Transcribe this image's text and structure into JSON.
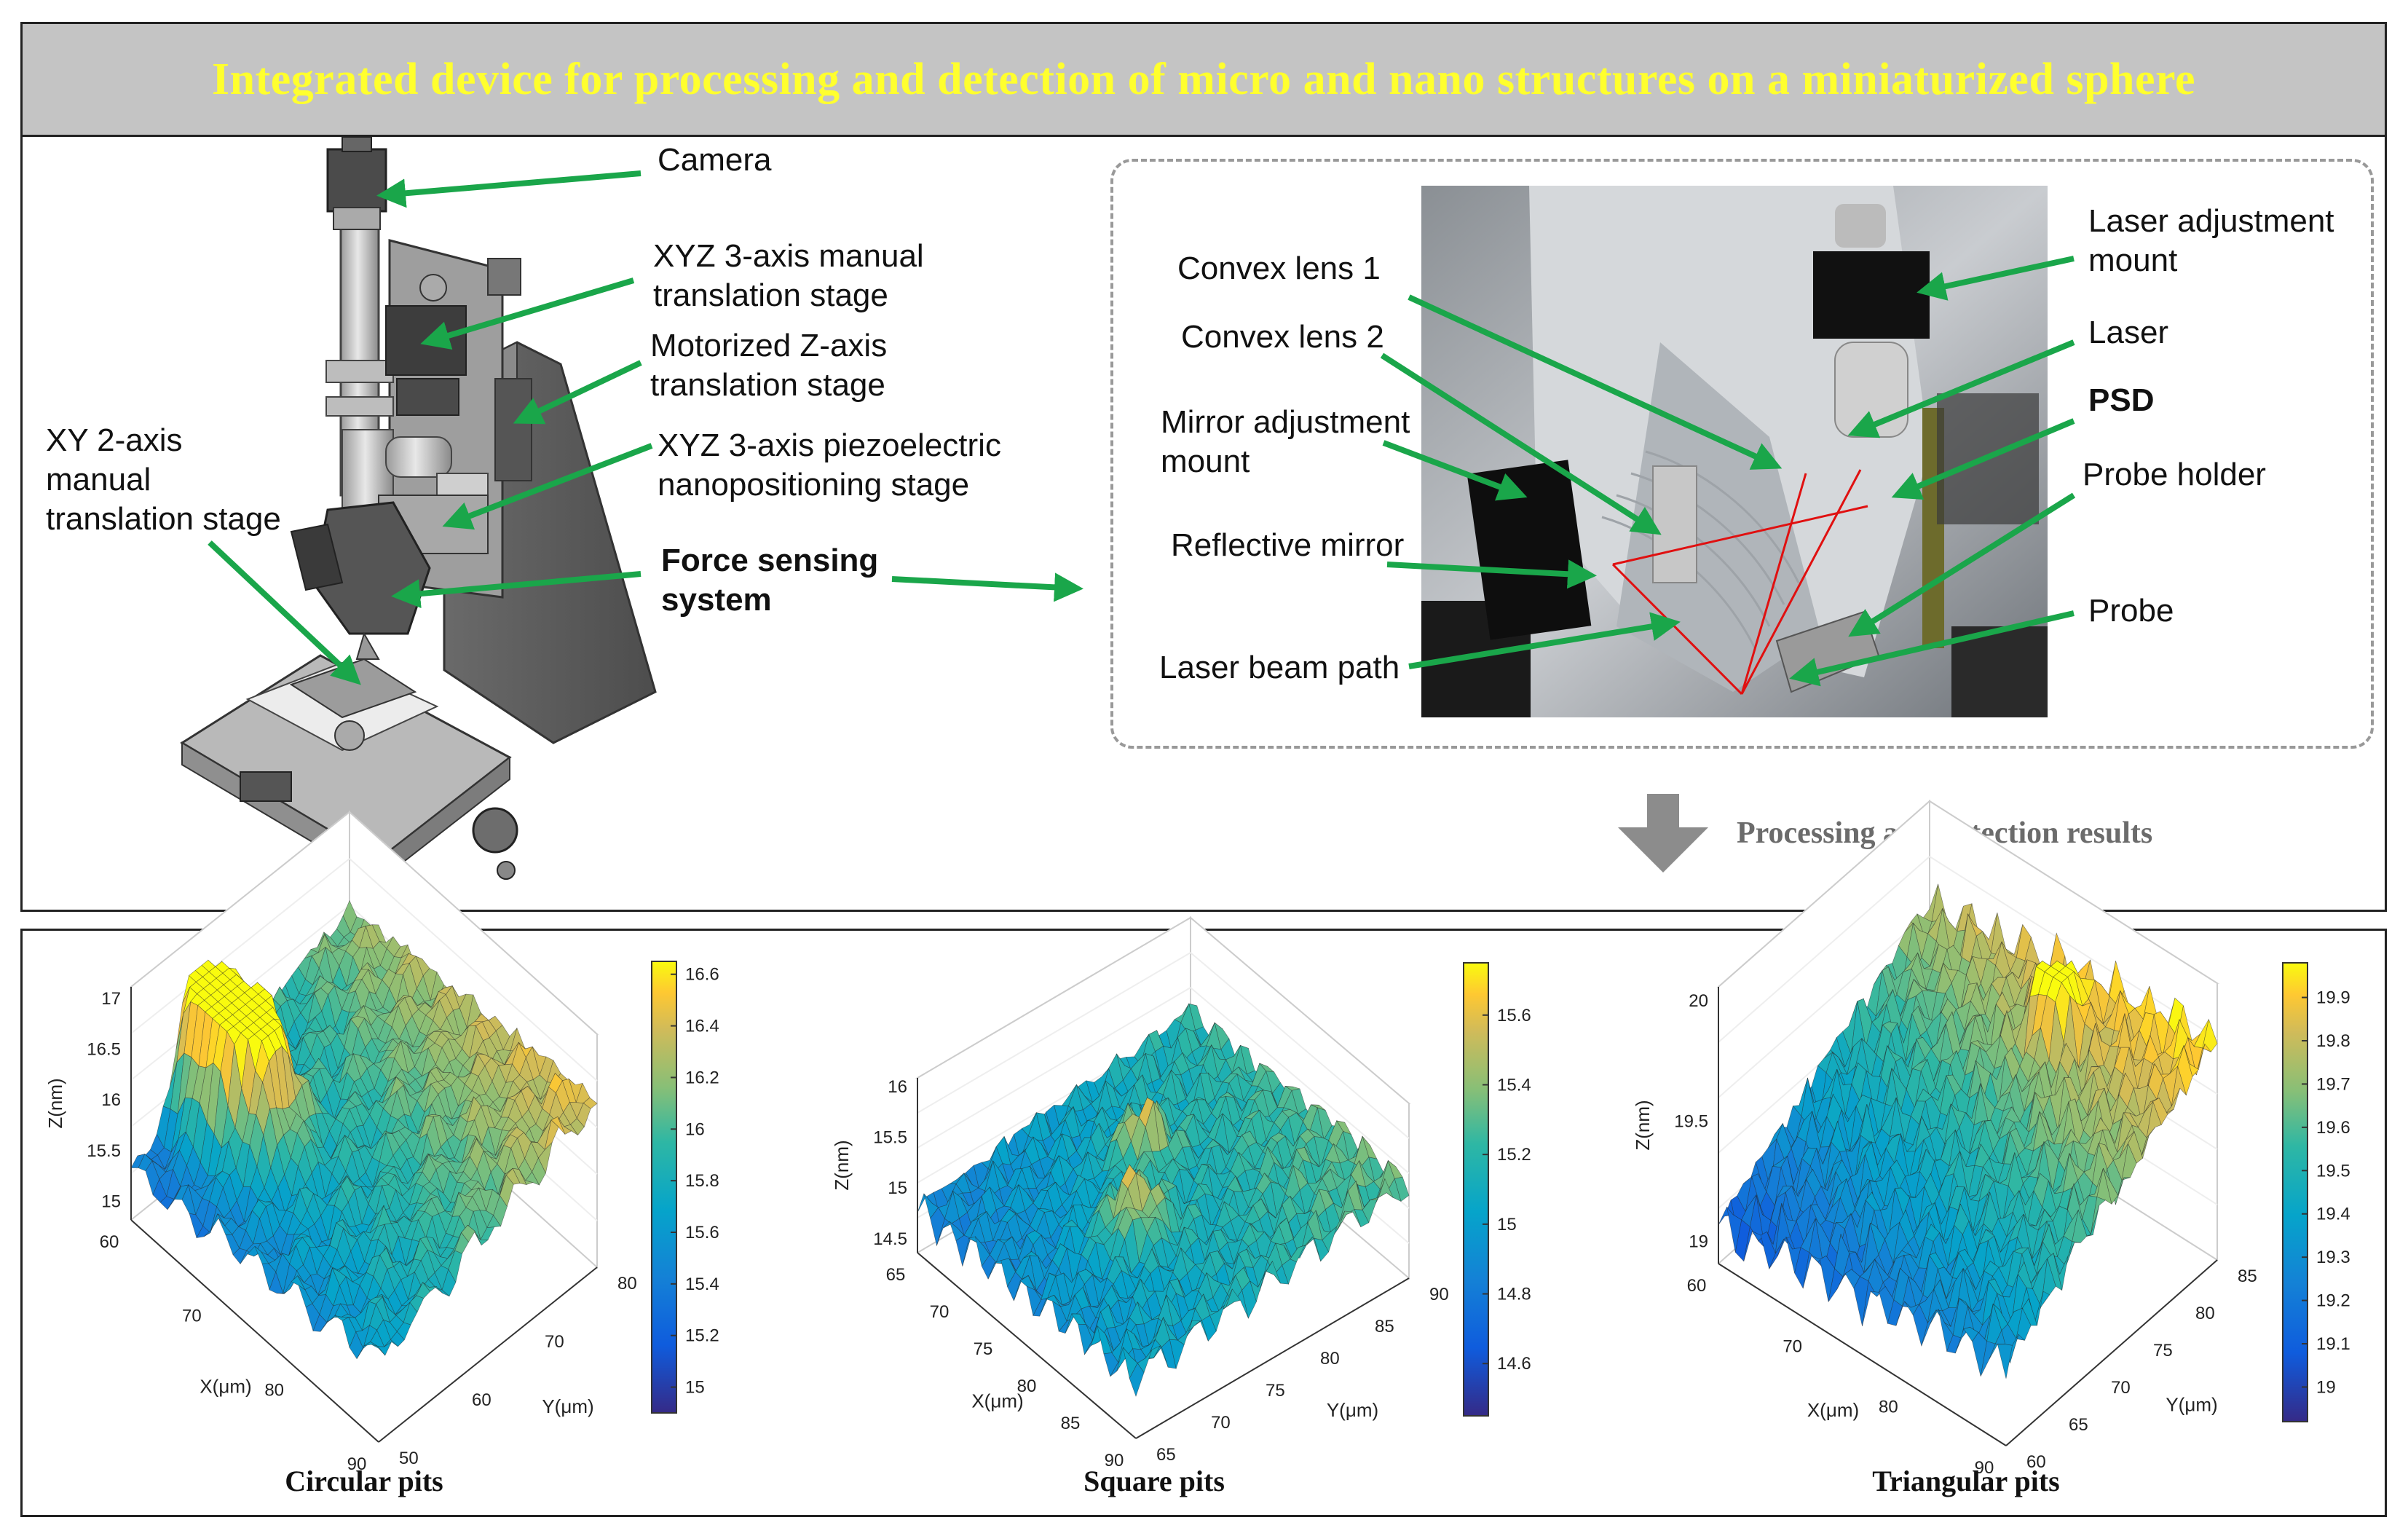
{
  "title": "Integrated device for processing and detection of micro and nano structures on a miniaturized sphere",
  "device_labels": {
    "camera": "Camera",
    "xyz_manual": "XYZ 3-axis manual\ntranslation stage",
    "motorized_z": "Motorized Z-axis\ntranslation stage",
    "xyz_piezo": "XYZ 3-axis piezoelectric\nnanopositioning stage",
    "xy_manual": "XY 2-axis\nmanual\ntranslation stage",
    "force_sensing": "Force sensing\nsystem"
  },
  "photo_labels": {
    "convex_lens_1": "Convex lens 1",
    "convex_lens_2": "Convex lens 2",
    "mirror_mount": "Mirror adjustment\nmount",
    "reflective_mirror": "Reflective mirror",
    "laser_beam_path": "Laser beam path",
    "laser_mount": "Laser adjustment\nmount",
    "laser": "Laser",
    "psd": "PSD",
    "probe_holder": "Probe holder",
    "probe": "Probe"
  },
  "results_caption": "Processing and detection results",
  "colors": {
    "title_bg": "#c4c4c4",
    "title_text": "#ffff2e",
    "arrow_green": "#1aa64a",
    "arrow_gray": "#8c8c8c",
    "beam_red": "#e01010"
  },
  "chart_data": [
    {
      "type": "surface",
      "title": "Circular pits",
      "xlabel": "X(μm)",
      "ylabel": "Y(μm)",
      "zlabel": "Z(nm)",
      "x_ticks": [
        "60",
        "70",
        "80",
        "90"
      ],
      "y_ticks": [
        "50",
        "60",
        "70",
        "80"
      ],
      "z_ticks": [
        "15",
        "15.5",
        "16",
        "16.5",
        "17"
      ],
      "colorbar_ticks": [
        "15",
        "15.2",
        "15.4",
        "15.6",
        "15.8",
        "16",
        "16.2",
        "16.4",
        "16.6"
      ],
      "zlim": [
        14.9,
        17.0
      ],
      "colorbar_range": [
        14.9,
        16.65
      ]
    },
    {
      "type": "surface",
      "title": "Square pits",
      "xlabel": "X(μm)",
      "ylabel": "Y(μm)",
      "zlabel": "Z(nm)",
      "x_ticks": [
        "65",
        "70",
        "75",
        "80",
        "85",
        "90"
      ],
      "y_ticks": [
        "65",
        "70",
        "75",
        "80",
        "85",
        "90"
      ],
      "z_ticks": [
        "14.5",
        "15",
        "15.5",
        "16"
      ],
      "colorbar_ticks": [
        "14.6",
        "14.8",
        "15",
        "15.2",
        "15.4",
        "15.6"
      ],
      "zlim": [
        14.5,
        16.0
      ],
      "colorbar_range": [
        14.45,
        15.75
      ]
    },
    {
      "type": "surface",
      "title": "Triangular pits",
      "xlabel": "X(μm)",
      "ylabel": "Y(μm)",
      "zlabel": "Z(nm)",
      "x_ticks": [
        "60",
        "70",
        "80",
        "90"
      ],
      "y_ticks": [
        "60",
        "65",
        "70",
        "75",
        "80",
        "85"
      ],
      "z_ticks": [
        "19",
        "19.5",
        "20"
      ],
      "colorbar_ticks": [
        "19",
        "19.1",
        "19.2",
        "19.3",
        "19.4",
        "19.5",
        "19.6",
        "19.7",
        "19.8",
        "19.9"
      ],
      "zlim": [
        19.0,
        20.0
      ],
      "colorbar_range": [
        18.92,
        19.98
      ]
    }
  ]
}
